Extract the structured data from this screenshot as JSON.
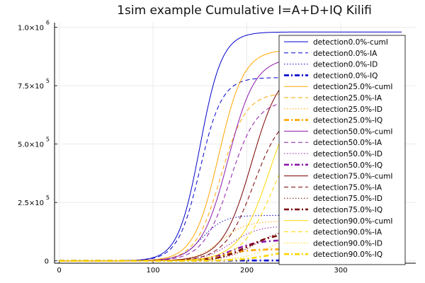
{
  "chart_data": {
    "type": "line",
    "title": "1sim example Cumulative I=A+D+IQ Kilifi",
    "xlabel": "",
    "ylabel": "",
    "xlim": [
      -5,
      380
    ],
    "ylim": [
      -10000,
      1020000
    ],
    "x_ticks": [
      {
        "value": 0,
        "label": "0"
      },
      {
        "value": 100,
        "label": "100"
      },
      {
        "value": 200,
        "label": "200"
      },
      {
        "value": 300,
        "label": "300"
      }
    ],
    "y_ticks": [
      {
        "value": 0,
        "label": "0",
        "sup": ""
      },
      {
        "value": 250000,
        "label": "2.5×10",
        "sup": "5"
      },
      {
        "value": 500000,
        "label": "5.0×10",
        "sup": "5"
      },
      {
        "value": 750000,
        "label": "7.5×10",
        "sup": "5"
      },
      {
        "value": 1000000,
        "label": "1.0×10",
        "sup": "6"
      }
    ],
    "grid": true,
    "legend_position": "right",
    "x_range": [
      0,
      365
    ],
    "series": [
      {
        "name": "detection0.0%-cumI",
        "color": "#0000cc",
        "style": "solid",
        "final": 980000,
        "midpoint": 150,
        "rate": 0.085
      },
      {
        "name": "detection0.0%-IA",
        "color": "#0000cc",
        "style": "dashed",
        "final": 785000,
        "midpoint": 150,
        "rate": 0.085
      },
      {
        "name": "detection0.0%-ID",
        "color": "#0000cc",
        "style": "dotted",
        "final": 195000,
        "midpoint": 152,
        "rate": 0.085
      },
      {
        "name": "detection0.0%-IQ",
        "color": "#0000cc",
        "style": "dashdot",
        "final": 1500,
        "midpoint": 160,
        "rate": 0.085
      },
      {
        "name": "detection25.0%-cumI",
        "color": "#ffa500",
        "style": "solid",
        "final": 905000,
        "midpoint": 170,
        "rate": 0.075
      },
      {
        "name": "detection25.0%-IA",
        "color": "#ffa500",
        "style": "dashed",
        "final": 720000,
        "midpoint": 172,
        "rate": 0.075
      },
      {
        "name": "detection25.0%-ID",
        "color": "#ffa500",
        "style": "dotted",
        "final": 170000,
        "midpoint": 172,
        "rate": 0.075
      },
      {
        "name": "detection25.0%-IQ",
        "color": "#ffa500",
        "style": "dashdot",
        "final": 50000,
        "midpoint": 175,
        "rate": 0.075
      },
      {
        "name": "detection50.0%-cumI",
        "color": "#8b1aa8",
        "style": "solid",
        "final": 870000,
        "midpoint": 180,
        "rate": 0.07
      },
      {
        "name": "detection50.0%-IA",
        "color": "#8b1aa8",
        "style": "dashed",
        "final": 690000,
        "midpoint": 182,
        "rate": 0.07
      },
      {
        "name": "detection50.0%-ID",
        "color": "#8b1aa8",
        "style": "dotted",
        "final": 150000,
        "midpoint": 183,
        "rate": 0.07
      },
      {
        "name": "detection50.0%-IQ",
        "color": "#8b1aa8",
        "style": "dashdot",
        "final": 90000,
        "midpoint": 185,
        "rate": 0.07
      },
      {
        "name": "detection75.0%-cumI",
        "color": "#7a0000",
        "style": "solid",
        "final": 840000,
        "midpoint": 205,
        "rate": 0.065
      },
      {
        "name": "detection75.0%-IA",
        "color": "#7a0000",
        "style": "dashed",
        "final": 650000,
        "midpoint": 207,
        "rate": 0.065
      },
      {
        "name": "detection75.0%-ID",
        "color": "#7a0000",
        "style": "dotted",
        "final": 140000,
        "midpoint": 208,
        "rate": 0.065
      },
      {
        "name": "detection75.0%-IQ",
        "color": "#7a0000",
        "style": "dashdot",
        "final": 120000,
        "midpoint": 200,
        "rate": 0.065
      },
      {
        "name": "detection90.0%-cumI",
        "color": "#ffd700",
        "style": "solid",
        "final": 790000,
        "midpoint": 225,
        "rate": 0.06
      },
      {
        "name": "detection90.0%-IA",
        "color": "#ffd700",
        "style": "dashed",
        "final": 620000,
        "midpoint": 228,
        "rate": 0.06
      },
      {
        "name": "detection90.0%-ID",
        "color": "#ffd700",
        "style": "dotted",
        "final": 130000,
        "midpoint": 228,
        "rate": 0.06
      },
      {
        "name": "detection90.0%-IQ",
        "color": "#ffd700",
        "style": "dashdot",
        "final": 50000,
        "midpoint": 225,
        "rate": 0.06
      }
    ]
  }
}
